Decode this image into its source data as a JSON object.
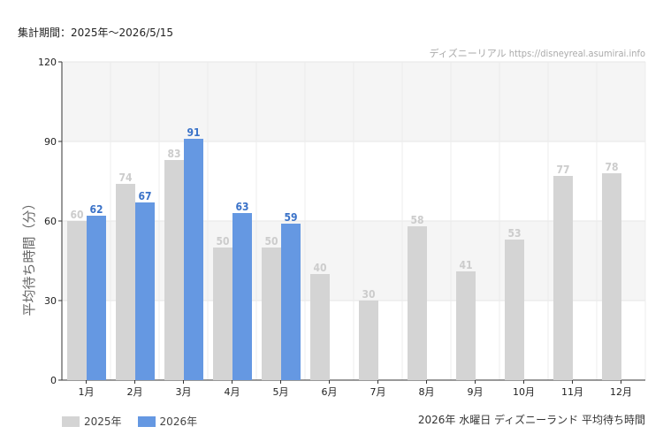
{
  "header": {
    "period_text": "集計期間：2025年～2026/5/15",
    "credit_text": "ディズニーリアル https://disneyreal.asumirai.info"
  },
  "footer": {
    "subtitle": "2026年 水曜日 ディズニーランド 平均待ち時間"
  },
  "colors": {
    "series_2025": "#d4d4d4",
    "series_2026": "#6598e2",
    "label_2025": "#cccccc",
    "label_2026": "#3a72c8",
    "band": "#f5f5f5"
  },
  "chart_data": {
    "type": "bar",
    "ylabel": "平均待ち時間（分）",
    "xlabel": "",
    "ylim": [
      0,
      120
    ],
    "yticks": [
      0,
      30,
      60,
      90,
      120
    ],
    "grid": true,
    "legend_position": "bottom-left",
    "categories": [
      "1月",
      "2月",
      "3月",
      "4月",
      "5月",
      "6月",
      "7月",
      "8月",
      "9月",
      "10月",
      "11月",
      "12月"
    ],
    "series": [
      {
        "name": "2025年",
        "values": [
          60,
          74,
          83,
          50,
          50,
          40,
          30,
          58,
          41,
          53,
          77,
          78
        ]
      },
      {
        "name": "2026年",
        "values": [
          62,
          67,
          91,
          63,
          59,
          null,
          null,
          null,
          null,
          null,
          null,
          null
        ]
      }
    ]
  }
}
